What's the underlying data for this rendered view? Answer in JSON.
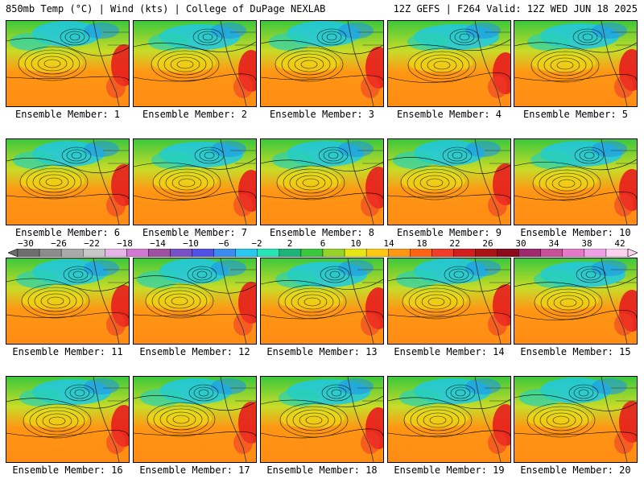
{
  "header": {
    "left_title": "850mb Temp (°C) | Wind (kts) | College of DuPage NEXLAB",
    "right_title": "12Z GEFS | F264 Valid: 12Z WED JUN 18 2025"
  },
  "colorbar": {
    "labels": [
      "−30",
      "−26",
      "−22",
      "−18",
      "−14",
      "−10",
      "−6",
      "−2",
      "2",
      "6",
      "10",
      "14",
      "18",
      "22",
      "26",
      "30",
      "34",
      "38",
      "42"
    ],
    "colors": [
      "#6e6e6e",
      "#8c8c8c",
      "#aaaaaa",
      "#c8c8c8",
      "#e6b4e6",
      "#d278d2",
      "#a050a0",
      "#7850c8",
      "#5050e6",
      "#3c8cf0",
      "#28c8f0",
      "#28e6b4",
      "#1eb478",
      "#3cc83c",
      "#96d228",
      "#e6e614",
      "#ffc814",
      "#ff9614",
      "#ff6414",
      "#f03c28",
      "#d21e1e",
      "#aa1414",
      "#8c0a1e",
      "#a0286e",
      "#c85096",
      "#e678c8",
      "#f0a0e6",
      "#ffd2f0"
    ]
  },
  "colors": {
    "cold": "#1ec8e6",
    "mid": "#3cc83c",
    "warm": "#ff9614",
    "hot": "#e61e1e"
  },
  "panels": [
    {
      "label": "Ensemble Member: 1"
    },
    {
      "label": "Ensemble Member: 2"
    },
    {
      "label": "Ensemble Member: 3"
    },
    {
      "label": "Ensemble Member: 4"
    },
    {
      "label": "Ensemble Member: 5"
    },
    {
      "label": "Ensemble Member: 6"
    },
    {
      "label": "Ensemble Member: 7"
    },
    {
      "label": "Ensemble Member: 8"
    },
    {
      "label": "Ensemble Member: 9"
    },
    {
      "label": "Ensemble Member: 10"
    },
    {
      "label": "Ensemble Member: 11"
    },
    {
      "label": "Ensemble Member: 12"
    },
    {
      "label": "Ensemble Member: 13"
    },
    {
      "label": "Ensemble Member: 14"
    },
    {
      "label": "Ensemble Member: 15"
    },
    {
      "label": "Ensemble Member: 16"
    },
    {
      "label": "Ensemble Member: 17"
    },
    {
      "label": "Ensemble Member: 18"
    },
    {
      "label": "Ensemble Member: 19"
    },
    {
      "label": "Ensemble Member: 20"
    }
  ]
}
